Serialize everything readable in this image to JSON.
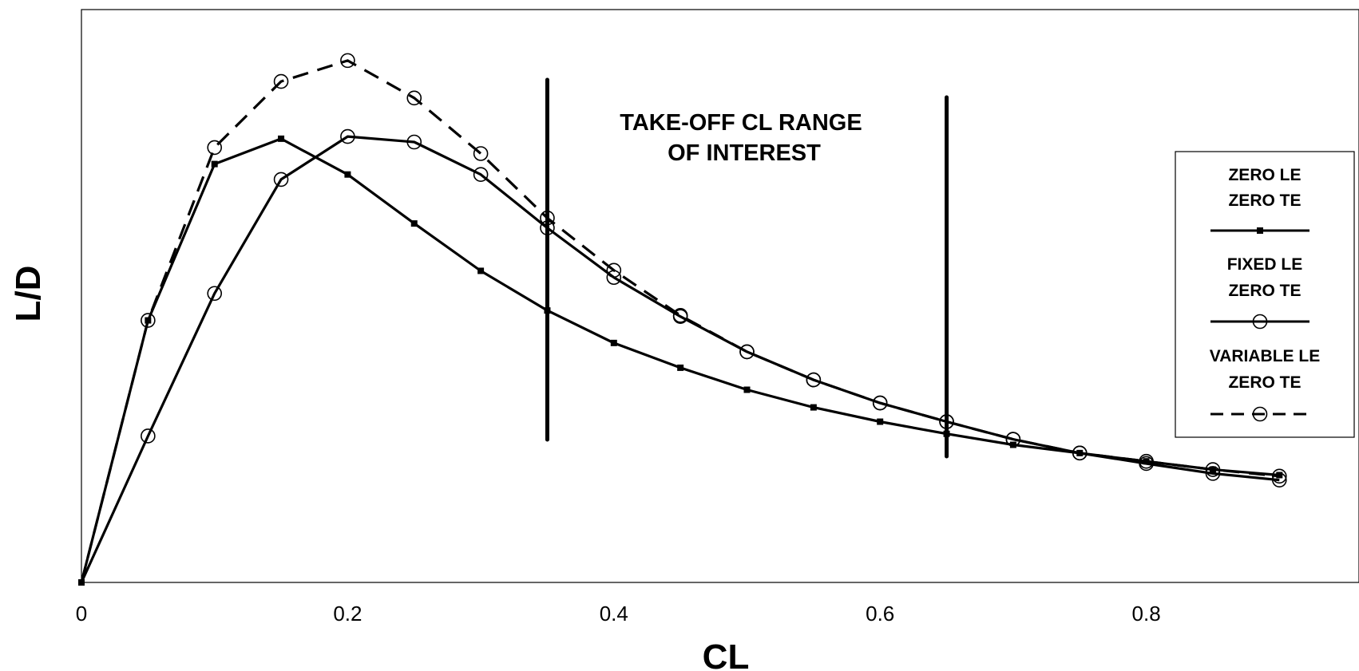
{
  "chart_data": {
    "type": "line",
    "title": "",
    "xlabel": "CL",
    "ylabel": "L/D",
    "xlim": [
      0,
      0.96
    ],
    "ylim": [
      0,
      1.0
    ],
    "x_ticks": [
      "0",
      "0.2",
      "0.4",
      "0.6",
      "0.8"
    ],
    "x_tick_values": [
      0,
      0.2,
      0.4,
      0.6,
      0.8
    ],
    "y_ticks": [],
    "grid": false,
    "legend_position": "right",
    "annotation": {
      "lines": [
        "TAKE-OFF CL RANGE",
        "OF INTEREST"
      ],
      "range": [
        0.35,
        0.65
      ]
    },
    "series": [
      {
        "name": "ZERO LE ZERO TE",
        "legend_lines": [
          "ZERO LE",
          "ZERO TE"
        ],
        "style": "solid",
        "marker": "square",
        "x": [
          0,
          0.05,
          0.1,
          0.15,
          0.2,
          0.25,
          0.3,
          0.35,
          0.4,
          0.45,
          0.5,
          0.55,
          0.6,
          0.65,
          0.7,
          0.75,
          0.8,
          0.85,
          0.9
        ],
        "values": [
          0,
          0.476,
          0.76,
          0.806,
          0.741,
          0.652,
          0.566,
          0.494,
          0.435,
          0.39,
          0.35,
          0.318,
          0.292,
          0.27,
          0.25,
          0.235,
          0.22,
          0.205,
          0.195
        ]
      },
      {
        "name": "FIXED LE ZERO TE",
        "legend_lines": [
          "FIXED LE",
          "ZERO TE"
        ],
        "style": "solid",
        "marker": "circle",
        "x": [
          0,
          0.05,
          0.1,
          0.15,
          0.2,
          0.25,
          0.3,
          0.35,
          0.4,
          0.45,
          0.5,
          0.55,
          0.6,
          0.65,
          0.7,
          0.75,
          0.8,
          0.85,
          0.9
        ],
        "values": [
          0,
          0.266,
          0.525,
          0.732,
          0.81,
          0.8,
          0.741,
          0.644,
          0.554,
          0.483,
          0.419,
          0.368,
          0.326,
          0.292,
          0.26,
          0.235,
          0.216,
          0.198,
          0.186
        ]
      },
      {
        "name": "VARIABLE LE ZERO TE",
        "legend_lines": [
          "VARIABLE LE",
          "ZERO TE"
        ],
        "style": "dashed",
        "marker": "circle",
        "x": [
          0,
          0.05,
          0.1,
          0.15,
          0.2,
          0.25,
          0.3,
          0.35,
          0.4,
          0.45,
          0.5,
          0.55,
          0.6,
          0.65,
          0.7,
          0.75,
          0.8,
          0.85,
          0.9
        ],
        "values": [
          0,
          0.476,
          0.79,
          0.91,
          0.948,
          0.88,
          0.779,
          0.662,
          0.567,
          0.485,
          0.419,
          0.368,
          0.326,
          0.292,
          0.26,
          0.235,
          0.22,
          0.205,
          0.193
        ]
      }
    ]
  }
}
